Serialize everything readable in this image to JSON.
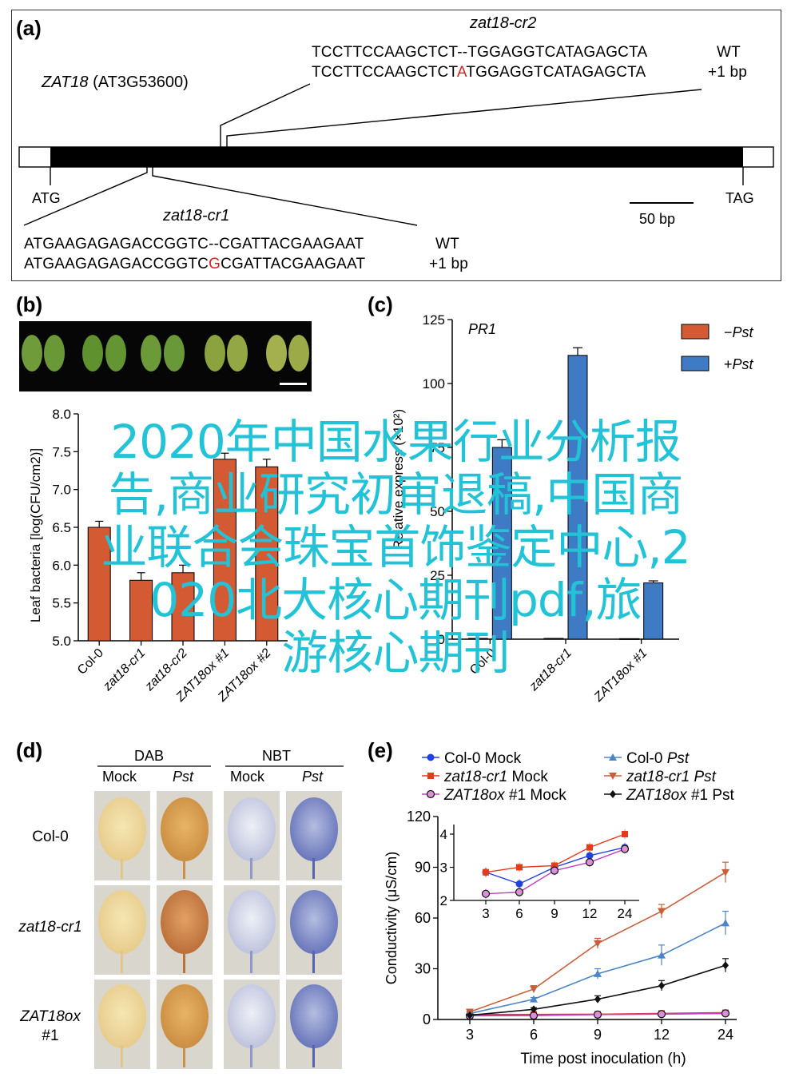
{
  "panel_a": {
    "label": "(a)",
    "gene": "ZAT18",
    "locus": "(AT3G53600)",
    "start_codon": "ATG",
    "stop_codon": "TAG",
    "scale": "50 bp",
    "cr2": {
      "name": "zat18-cr2",
      "wt_seq": "TCCTTCCAAGCTCT--TGGAGGTCATAGAGCTA",
      "wt_tag": "WT",
      "mut_pre": "TCCTTCCAAGCTCT",
      "mut_ins": "A",
      "mut_post": "TGGAGGTCATAGAGCTA",
      "mut_tag": "+1 bp"
    },
    "cr1": {
      "name": "zat18-cr1",
      "wt_seq": "ATGAAGAGAGACCGGTC--CGATTACGAAGAAT",
      "wt_tag": "WT",
      "mut_pre": "ATGAAGAGAGACCGGTC",
      "mut_ins": "G",
      "mut_post": "CGATTACGAAGAAT",
      "mut_tag": "+1 bp"
    }
  },
  "panel_b": {
    "label": "(b)",
    "chart_data": {
      "type": "bar",
      "categories": [
        "Col-0",
        "zat18-cr1",
        "zat18-cr2",
        "ZAT18ox #1",
        "ZAT18ox #2"
      ],
      "values": [
        6.5,
        5.8,
        5.9,
        7.4,
        7.3
      ],
      "errors": [
        0.08,
        0.1,
        0.1,
        0.08,
        0.1
      ],
      "ylabel_visible": "Leaf bacteria [log(CFU/cm2)]",
      "yticks": [
        "5.0",
        "5.5",
        "6.0",
        "6.5",
        "7.0",
        "7.5",
        "8.0"
      ],
      "ylim": [
        5.0,
        8.0
      ],
      "bar_color": "#d45a34"
    }
  },
  "panel_c": {
    "label": "(c)",
    "chart_data": {
      "type": "bar",
      "title": "PR1",
      "categories": [
        "Col-0",
        "zat18-cr1",
        "ZAT18ox #1"
      ],
      "series": [
        {
          "name": "−Pst",
          "values": [
            0.3,
            0.3,
            0.2
          ],
          "color": "#d45a34"
        },
        {
          "name": "+Pst",
          "values": [
            75,
            111,
            22
          ],
          "errors": [
            3,
            3,
            0.8
          ],
          "color": "#3f7bc4"
        }
      ],
      "ylabel_visible": "Relative express (×10²)",
      "yticks": [
        "0",
        "25",
        "50",
        "75",
        "100",
        "125"
      ],
      "ylim": [
        0,
        125
      ],
      "legend": "top-right"
    }
  },
  "panel_d": {
    "label": "(d)",
    "groups": [
      "DAB",
      "NBT"
    ],
    "columns": [
      "Mock",
      "Pst",
      "Mock",
      "Pst"
    ],
    "rows": [
      "Col-0",
      "zat18-cr1",
      "ZAT18ox",
      "#1"
    ]
  },
  "panel_e": {
    "label": "(e)",
    "legend": [
      {
        "text_a": "Col-0",
        "text_b": " Mock",
        "italic_a": false,
        "color": "#2340e0",
        "marker": "circle"
      },
      {
        "text_a": "Col-0 ",
        "text_b": "Pst",
        "italic_a": false,
        "italic_b": true,
        "color": "#4d86c6",
        "marker": "triangle-up"
      },
      {
        "text_a": "zat18-cr1",
        "text_b": " Mock",
        "italic_a": true,
        "color": "#e43b1c",
        "marker": "square"
      },
      {
        "text_a": "zat18-cr1 ",
        "text_b": "Pst",
        "italic_a": true,
        "italic_b": true,
        "color": "#c7603a",
        "marker": "triangle-down"
      },
      {
        "text_a": "ZAT18ox",
        "text_b": " #1 Mock",
        "italic_a": true,
        "color": "#c43fc4",
        "marker": "circle-open"
      },
      {
        "text_a": "ZAT18ox",
        "text_b": " #1 Pst",
        "italic_a": true,
        "color": "#111111",
        "marker": "diamond"
      }
    ],
    "chart_data": {
      "type": "line",
      "x": [
        3,
        6,
        9,
        12,
        24
      ],
      "xticks": [
        "3",
        "6",
        "9",
        "12",
        "24"
      ],
      "xlabel": "Time post inoculation (h)",
      "ylabel": "Conductivity (μS/cm)",
      "yticks": [
        "0",
        "30",
        "60",
        "90",
        "120"
      ],
      "ylim": [
        0,
        120
      ],
      "series": [
        {
          "name": "Col-0 Mock",
          "values": [
            2.8,
            2.5,
            3.0,
            3.3,
            3.6
          ],
          "color": "#2340e0"
        },
        {
          "name": "zat18-cr1 Mock",
          "values": [
            2.9,
            3.0,
            3.1,
            3.6,
            4.0
          ],
          "color": "#e43b1c"
        },
        {
          "name": "ZAT18ox #1 Mock",
          "values": [
            2.2,
            2.3,
            2.9,
            3.2,
            3.6
          ],
          "color": "#c43fc4"
        },
        {
          "name": "Col-0 Pst",
          "values": [
            3.5,
            12,
            27,
            38,
            57
          ],
          "errors": [
            0.5,
            1,
            3,
            6,
            7
          ],
          "color": "#4d86c6"
        },
        {
          "name": "zat18-cr1 Pst",
          "values": [
            4.5,
            18,
            45,
            64,
            87
          ],
          "errors": [
            0.5,
            2,
            3,
            4,
            6
          ],
          "color": "#c7603a"
        },
        {
          "name": "ZAT18ox #1 Pst",
          "values": [
            2.5,
            6,
            12,
            20,
            32
          ],
          "errors": [
            0.3,
            1,
            2,
            3,
            4
          ],
          "color": "#111111"
        }
      ],
      "inset": {
        "xticks": [
          "3",
          "6",
          "9",
          "12",
          "24"
        ],
        "yticks": [
          "2",
          "3",
          "4"
        ],
        "ylim": [
          2,
          4
        ],
        "series": [
          {
            "name": "Col-0 Mock",
            "values": [
              2.85,
              2.5,
              3.0,
              3.35,
              3.6
            ],
            "color": "#2340e0"
          },
          {
            "name": "zat18-cr1 Mock",
            "values": [
              2.85,
              3.0,
              3.05,
              3.6,
              4.0
            ],
            "color": "#e43b1c"
          },
          {
            "name": "ZAT18ox #1 Mock",
            "values": [
              2.2,
              2.25,
              2.9,
              3.15,
              3.55
            ],
            "color": "#c43fc4"
          }
        ]
      }
    }
  },
  "watermark": {
    "lines": [
      "2020年中国水果行业分析报",
      "告,商业研究初审退稿,中国商",
      "业联合会珠宝首饰鉴定中心,2",
      "020北大核心期刊pdf,旅",
      "游核心期刊"
    ]
  }
}
